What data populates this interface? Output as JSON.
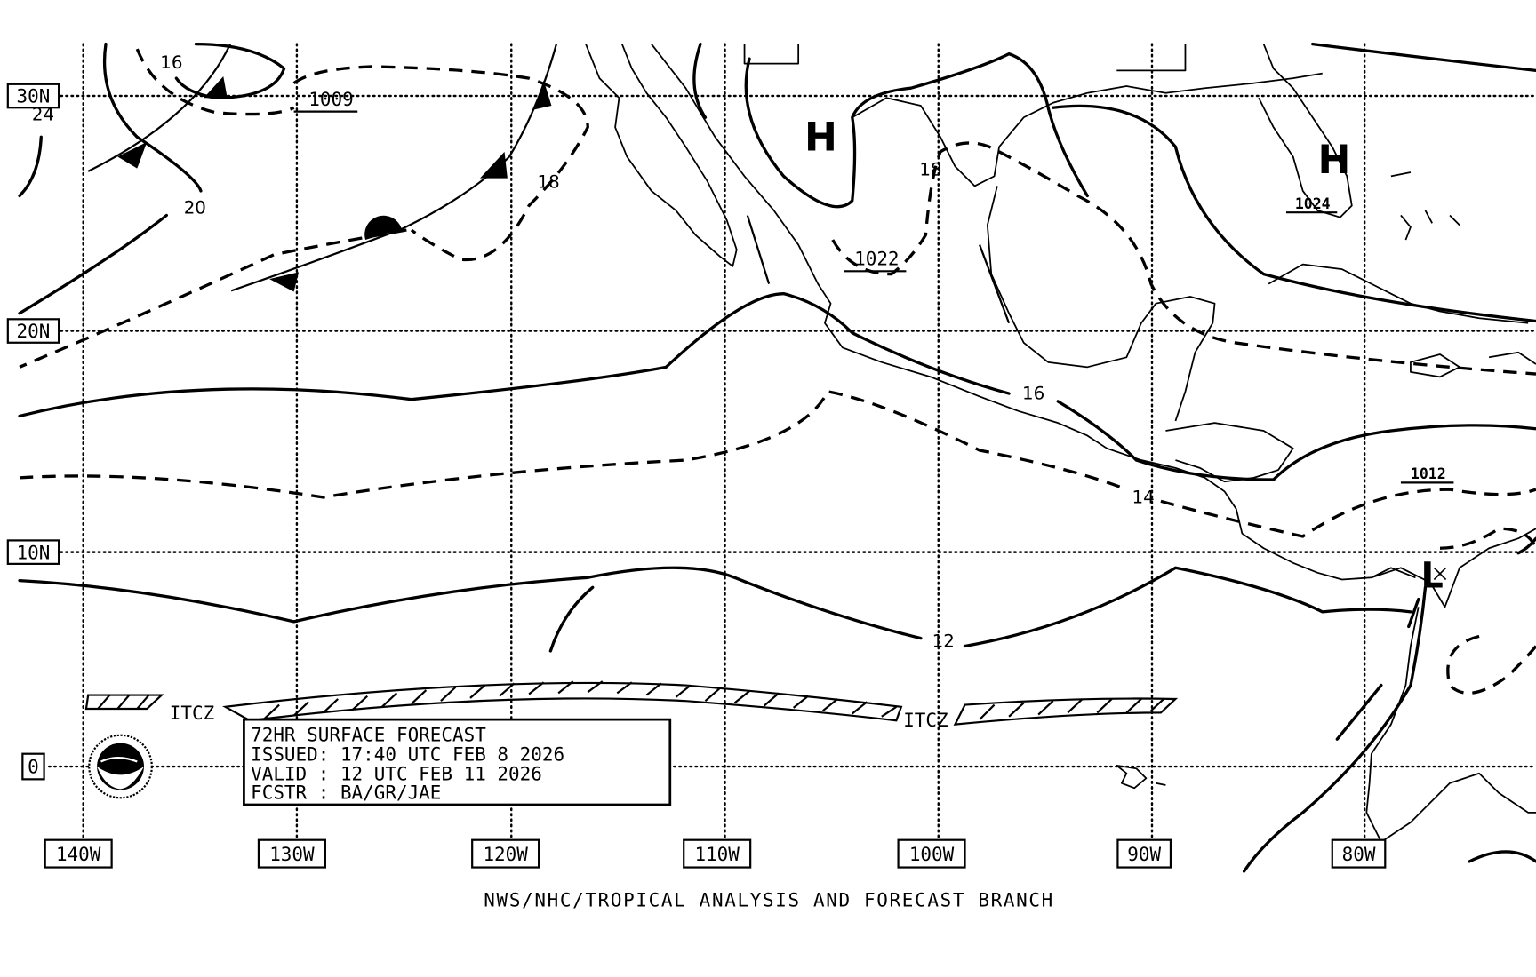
{
  "map": {
    "type": "surface-forecast-chart",
    "colors": {
      "foreground": "#000000",
      "background": "#ffffff"
    },
    "latitude_labels": [
      "30N",
      "20N",
      "10N",
      "0"
    ],
    "longitude_labels": [
      "140W",
      "130W",
      "120W",
      "110W",
      "100W",
      "90W",
      "80W"
    ],
    "pressure_centers": [
      {
        "symbol": "H",
        "pressure": "1022"
      },
      {
        "symbol": "H",
        "pressure": "1024"
      },
      {
        "symbol": "L",
        "pressure": "1012"
      }
    ],
    "isobar_labels": [
      "1009"
    ],
    "wave_height_labels": [
      "16",
      "24",
      "20",
      "18",
      "18",
      "16",
      "14",
      "12"
    ],
    "itcz_labels": [
      "ITCZ",
      "ITCZ"
    ],
    "info_box": {
      "title": "72HR SURFACE FORECAST",
      "issued": "ISSUED: 17:40 UTC FEB 8 2026",
      "valid": "VALID : 12 UTC FEB 11 2026",
      "forecaster": "FCSTR : BA/GR/JAE"
    },
    "logo": "NOAA",
    "footer": "NWS/NHC/TROPICAL ANALYSIS AND FORECAST BRANCH"
  }
}
